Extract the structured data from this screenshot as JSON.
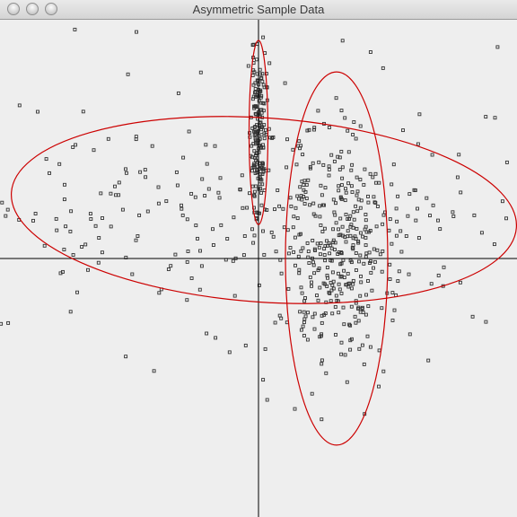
{
  "window": {
    "title": "Asymmetric Sample Data"
  },
  "chart_data": {
    "type": "scatter",
    "title": "Asymmetric Sample Data",
    "xlim": [
      -1.0,
      1.0
    ],
    "ylim": [
      -1.0,
      1.0
    ],
    "axes_origin": [
      0,
      0
    ],
    "grid": false,
    "colors": {
      "points": "#333333",
      "axes": "#000000",
      "ellipses": "#cc0000",
      "background": "#eeeeee"
    },
    "clusters": [
      {
        "name": "",
        "center": [
          0.0,
          0.52
        ],
        "spread": [
          0.014,
          0.16
        ],
        "count": 170,
        "seed": 11
      },
      {
        "name": "",
        "center": [
          0.29,
          0.0
        ],
        "spread": [
          0.1,
          0.26
        ],
        "count": 330,
        "seed": 23
      },
      {
        "name": "",
        "center": [
          0.0,
          0.2
        ],
        "spread": [
          0.58,
          0.24
        ],
        "count": 280,
        "seed": 37
      }
    ],
    "ellipses": [
      {
        "center": [
          0.0,
          0.52
        ],
        "radii": [
          0.035,
          0.38
        ],
        "rotation_deg": 0
      },
      {
        "center": [
          0.29,
          0.0
        ],
        "radii": [
          0.19,
          0.77
        ],
        "rotation_deg": 0
      },
      {
        "center": [
          0.02,
          0.2
        ],
        "radii": [
          0.94,
          0.38
        ],
        "rotation_deg": 4
      }
    ]
  }
}
